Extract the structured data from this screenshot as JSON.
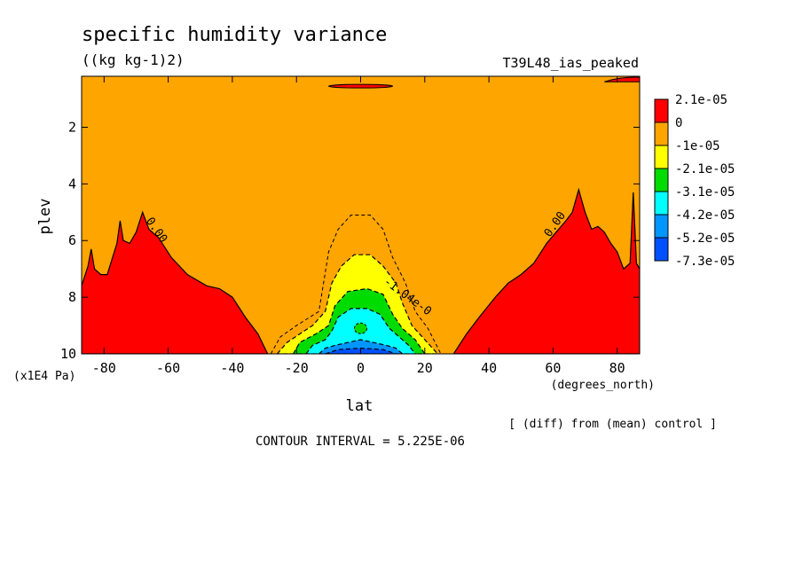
{
  "chart_data": {
    "type": "contour",
    "title": "specific humidity variance",
    "units": "((kg kg-1)2)",
    "experiment": "T39L48_ias_peaked",
    "xlabel": "lat",
    "xunits": "(degrees_north)",
    "ylabel": "plev",
    "yunits": "(x1E4 Pa)",
    "xlim": [
      -87,
      87
    ],
    "ylim": [
      10,
      0.2
    ],
    "x_ticks": [
      -80,
      -60,
      -40,
      -20,
      0,
      20,
      40,
      60,
      80
    ],
    "y_ticks": [
      2,
      4,
      6,
      8,
      10
    ],
    "x_tick_labels": [
      "-80",
      "-60",
      "-40",
      "-20",
      "0",
      "20",
      "40",
      "60",
      "80"
    ],
    "y_tick_labels": [
      "2",
      "4",
      "6",
      "8",
      "10"
    ],
    "subtitle": "[ (diff) from (mean) control ]",
    "footer": "CONTOUR INTERVAL = 5.225E-06",
    "contour_interval": 5.225e-06,
    "contour_labels": [
      "0.00",
      "0.00",
      "-1.04e-0"
    ],
    "legend": {
      "labels": [
        "2.1e-05",
        "0",
        "-1e-05",
        "-2.1e-05",
        "-3.1e-05",
        "-4.2e-05",
        "-5.2e-05",
        "-7.3e-05"
      ],
      "colors": [
        "#ff0000",
        "#ffa500",
        "#ffff00",
        "#00dc00",
        "#00ffff",
        "#0096ff",
        "#0050ff"
      ]
    },
    "regions": {
      "background": {
        "level": "0 to 2.1e-05",
        "color": "#ffa500"
      },
      "positive_left": {
        "color": "#ff0000",
        "boundary": [
          [
            -87,
            7.6
          ],
          [
            -85,
            6.9
          ],
          [
            -84,
            6.3
          ],
          [
            -83,
            7.0
          ],
          [
            -81,
            7.2
          ],
          [
            -79,
            7.2
          ],
          [
            -76,
            6.1
          ],
          [
            -75,
            5.3
          ],
          [
            -74,
            6.0
          ],
          [
            -72,
            6.1
          ],
          [
            -70,
            5.7
          ],
          [
            -68,
            5.0
          ],
          [
            -66,
            5.6
          ],
          [
            -63,
            5.9
          ],
          [
            -59,
            6.6
          ],
          [
            -54,
            7.2
          ],
          [
            -48,
            7.6
          ],
          [
            -44,
            7.7
          ],
          [
            -40,
            8.0
          ],
          [
            -36,
            8.7
          ],
          [
            -32,
            9.3
          ],
          [
            -29,
            10
          ]
        ]
      },
      "positive_right": {
        "color": "#ff0000",
        "boundary": [
          [
            29,
            10
          ],
          [
            33,
            9.3
          ],
          [
            37,
            8.7
          ],
          [
            42,
            8.0
          ],
          [
            46,
            7.5
          ],
          [
            50,
            7.2
          ],
          [
            54,
            6.8
          ],
          [
            58,
            6.1
          ],
          [
            61,
            5.7
          ],
          [
            64,
            5.3
          ],
          [
            66,
            5.0
          ],
          [
            68,
            4.2
          ],
          [
            70,
            5.0
          ],
          [
            72,
            5.6
          ],
          [
            74,
            5.5
          ],
          [
            76,
            5.7
          ],
          [
            78,
            6.1
          ],
          [
            80,
            6.4
          ],
          [
            82,
            7.0
          ],
          [
            84,
            6.8
          ],
          [
            85,
            4.3
          ],
          [
            86,
            6.8
          ],
          [
            87,
            7.0
          ]
        ]
      },
      "positive_top_center": {
        "color": "#ff0000",
        "lat_range": [
          -10,
          10
        ],
        "plev": 0.55
      },
      "positive_top_right": {
        "color": "#ff0000",
        "lat_range": [
          76,
          87
        ],
        "plev": 0.3
      },
      "negative_center": {
        "levels": [
          {
            "label": "-1e-05",
            "color": "#ffff00",
            "boundary": [
              [
                -26,
                10
              ],
              [
                -23,
                9.6
              ],
              [
                -19,
                9.3
              ],
              [
                -15,
                9.0
              ],
              [
                -11,
                8.5
              ],
              [
                -9,
                7.5
              ],
              [
                -6,
                6.9
              ],
              [
                -2,
                6.5
              ],
              [
                3,
                6.5
              ],
              [
                7,
                6.9
              ],
              [
                11,
                7.5
              ],
              [
                13,
                8.2
              ],
              [
                16,
                9.0
              ],
              [
                20,
                9.5
              ],
              [
                24,
                10
              ]
            ]
          },
          {
            "label": "-2.1e-05",
            "color": "#00dc00",
            "boundary": [
              [
                -21,
                10
              ],
              [
                -19,
                9.6
              ],
              [
                -14,
                9.3
              ],
              [
                -10,
                9.0
              ],
              [
                -8,
                8.3
              ],
              [
                -4,
                7.8
              ],
              [
                2,
                7.7
              ],
              [
                7,
                7.9
              ],
              [
                10,
                8.6
              ],
              [
                13,
                9.1
              ],
              [
                17,
                9.5
              ],
              [
                20,
                10
              ]
            ]
          },
          {
            "label": "-3.1e-05",
            "color": "#00ffff",
            "boundary": [
              [
                -17,
                10
              ],
              [
                -15,
                9.7
              ],
              [
                -11,
                9.5
              ],
              [
                -9,
                9.2
              ],
              [
                -7,
                8.7
              ],
              [
                -3,
                8.4
              ],
              [
                2,
                8.4
              ],
              [
                6,
                8.6
              ],
              [
                9,
                9.1
              ],
              [
                12,
                9.4
              ],
              [
                15,
                9.7
              ],
              [
                17,
                10
              ]
            ]
          },
          {
            "label": "-4.2e-05",
            "color": "#0096ff",
            "boundary": [
              [
                -13,
                10
              ],
              [
                -11,
                9.8
              ],
              [
                -8,
                9.7
              ],
              [
                -4,
                9.6
              ],
              [
                0,
                9.5
              ],
              [
                4,
                9.6
              ],
              [
                8,
                9.7
              ],
              [
                11,
                9.8
              ],
              [
                13,
                10
              ]
            ]
          },
          {
            "label": "-5.2e-05",
            "color": "#0050ff",
            "boundary": [
              [
                -11,
                10
              ],
              [
                -7,
                9.85
              ],
              [
                0,
                9.8
              ],
              [
                7,
                9.85
              ],
              [
                11,
                10
              ]
            ]
          }
        ],
        "island": {
          "label": "-3.1e-05",
          "color": "#00dc00",
          "center": [
            0,
            9.1
          ]
        }
      },
      "dashed_outline": [
        [
          -28,
          10
        ],
        [
          -25,
          9.4
        ],
        [
          -20,
          9.0
        ],
        [
          -13,
          8.5
        ],
        [
          -10,
          6.4
        ],
        [
          -7,
          5.6
        ],
        [
          -3,
          5.1
        ],
        [
          3,
          5.1
        ],
        [
          7,
          5.6
        ],
        [
          10,
          6.6
        ],
        [
          14,
          7.5
        ],
        [
          17,
          8.5
        ],
        [
          21,
          9.1
        ],
        [
          25,
          10
        ]
      ]
    }
  }
}
